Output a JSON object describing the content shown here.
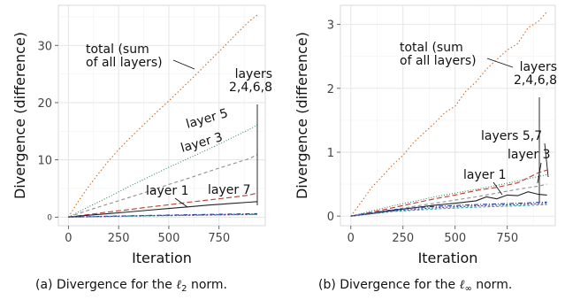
{
  "chart_data": [
    {
      "type": "line",
      "caption_prefix": "(a) Divergence for the ",
      "caption_symbol": "ℓ",
      "caption_sub": "2",
      "caption_suffix": " norm.",
      "xlabel": "Iteration",
      "ylabel": "Divergence (difference)",
      "xlim": [
        -50,
        980
      ],
      "ylim": [
        -1.5,
        37
      ],
      "xticks": [
        0,
        250,
        500,
        750
      ],
      "yticks": [
        0,
        10,
        20,
        30
      ],
      "ytick_labels": [
        "0",
        "10",
        "20",
        "30"
      ],
      "grid": true,
      "series": [
        {
          "name": "total (sum of all layers)",
          "color": "#d2691e",
          "dash": "1.5,2.5",
          "x": [
            0,
            50,
            100,
            150,
            200,
            250,
            300,
            350,
            400,
            450,
            500,
            550,
            600,
            650,
            700,
            750,
            800,
            850,
            900,
            940
          ],
          "y": [
            0,
            2.8,
            5.3,
            7.6,
            9.8,
            11.8,
            13.6,
            15.3,
            17.0,
            18.7,
            20.3,
            22.0,
            23.7,
            25.4,
            27.2,
            28.9,
            30.7,
            32.5,
            34.2,
            35.3
          ]
        },
        {
          "name": "layer 5",
          "color": "#2e8b57",
          "dash": "1,2",
          "x": [
            0,
            100,
            200,
            300,
            400,
            500,
            600,
            700,
            800,
            900,
            940
          ],
          "y": [
            0,
            1.8,
            3.5,
            5.3,
            7.0,
            8.7,
            10.3,
            11.9,
            13.6,
            15.3,
            16.1
          ]
        },
        {
          "name": "layer 3",
          "color": "#909090",
          "dash": "4,3",
          "x": [
            0,
            100,
            200,
            300,
            400,
            500,
            600,
            700,
            800,
            900,
            940
          ],
          "y": [
            0,
            1.2,
            2.3,
            3.4,
            4.5,
            5.7,
            6.8,
            8.0,
            9.1,
            10.2,
            10.9
          ]
        },
        {
          "name": "layer 7",
          "color": "#c0392b",
          "dash": "6,3",
          "x": [
            0,
            100,
            200,
            300,
            400,
            500,
            600,
            700,
            800,
            900,
            940
          ],
          "y": [
            0,
            0.45,
            0.9,
            1.3,
            1.75,
            2.15,
            2.6,
            3.0,
            3.4,
            3.85,
            4.2
          ]
        },
        {
          "name": "layer 1",
          "color": "#222222",
          "dash": "",
          "x": [
            0,
            100,
            200,
            300,
            400,
            500,
            600,
            700,
            800,
            900,
            940
          ],
          "y": [
            0,
            0.32,
            0.6,
            0.9,
            1.2,
            1.5,
            1.8,
            2.1,
            2.35,
            2.6,
            2.7
          ]
        },
        {
          "name": "layers 2,4,6,8 (a)",
          "color": "#1f3fa0",
          "dash": "5,2,1,2",
          "x": [
            0,
            200,
            400,
            600,
            800,
            940
          ],
          "y": [
            0,
            0.15,
            0.3,
            0.42,
            0.52,
            0.6
          ]
        },
        {
          "name": "layers 2,4,6,8 (b)",
          "color": "#20b2aa",
          "dash": "3,2",
          "x": [
            0,
            200,
            400,
            600,
            800,
            940
          ],
          "y": [
            0,
            0.1,
            0.2,
            0.3,
            0.38,
            0.45
          ]
        },
        {
          "name": "layers 2,4,6,8 (c)",
          "color": "#5b2c8f",
          "dash": "2,2",
          "x": [
            0,
            200,
            400,
            600,
            800,
            940
          ],
          "y": [
            0,
            0.12,
            0.24,
            0.34,
            0.44,
            0.5
          ]
        }
      ],
      "annotations": [
        {
          "lines": [
            "total (sum",
            "of all layers)"
          ]
        },
        {
          "lines": [
            "layers",
            "2,4,6,8"
          ]
        },
        {
          "lines": [
            "layer 5"
          ]
        },
        {
          "lines": [
            "layer 3"
          ]
        },
        {
          "lines": [
            "layer 1"
          ]
        },
        {
          "lines": [
            "layer 7"
          ]
        }
      ]
    },
    {
      "type": "line",
      "caption_prefix": "(b) Divergence for the ",
      "caption_symbol": "ℓ",
      "caption_sub": "∞",
      "caption_suffix": " norm.",
      "xlabel": "Iteration",
      "ylabel": "Divergence (difference)",
      "xlim": [
        -50,
        980
      ],
      "ylim": [
        -0.15,
        3.3
      ],
      "xticks": [
        0,
        250,
        500,
        750
      ],
      "yticks": [
        0,
        1,
        2,
        3
      ],
      "ytick_labels": [
        "0",
        "1",
        "2",
        "3"
      ],
      "grid": true,
      "series": [
        {
          "name": "total (sum of all layers)",
          "color": "#d2691e",
          "dash": "1.5,2.5",
          "x": [
            0,
            50,
            100,
            150,
            200,
            250,
            300,
            350,
            400,
            450,
            500,
            550,
            600,
            650,
            700,
            750,
            800,
            850,
            900,
            940
          ],
          "y": [
            0,
            0.22,
            0.45,
            0.62,
            0.8,
            0.95,
            1.15,
            1.3,
            1.45,
            1.62,
            1.72,
            1.95,
            2.1,
            2.3,
            2.45,
            2.6,
            2.7,
            2.95,
            3.05,
            3.2
          ]
        },
        {
          "name": "layers 5,7 (a)",
          "color": "#2e8b57",
          "dash": "1,2",
          "x": [
            0,
            100,
            200,
            300,
            400,
            500,
            600,
            700,
            800,
            900,
            940
          ],
          "y": [
            0,
            0.08,
            0.16,
            0.23,
            0.3,
            0.36,
            0.42,
            0.48,
            0.55,
            0.62,
            0.65
          ]
        },
        {
          "name": "layers 5,7 (b)",
          "color": "#c0392b",
          "dash": "6,3",
          "x": [
            0,
            100,
            200,
            300,
            400,
            500,
            600,
            700,
            800,
            900,
            940
          ],
          "y": [
            0,
            0.06,
            0.13,
            0.2,
            0.27,
            0.33,
            0.4,
            0.45,
            0.52,
            0.68,
            0.72
          ]
        },
        {
          "name": "layer 3",
          "color": "#909090",
          "dash": "4,3",
          "x": [
            0,
            100,
            200,
            300,
            400,
            500,
            600,
            700,
            800,
            900,
            940
          ],
          "y": [
            0,
            0.05,
            0.1,
            0.15,
            0.2,
            0.25,
            0.3,
            0.36,
            0.42,
            0.47,
            0.5
          ]
        },
        {
          "name": "layer 1",
          "color": "#222222",
          "dash": "",
          "x": [
            0,
            100,
            200,
            300,
            400,
            500,
            600,
            650,
            700,
            750,
            800,
            850,
            900,
            940
          ],
          "y": [
            0,
            0.04,
            0.09,
            0.13,
            0.17,
            0.2,
            0.24,
            0.3,
            0.27,
            0.33,
            0.32,
            0.38,
            0.34,
            0.33
          ]
        },
        {
          "name": "layers 2,4,6,8 (a)",
          "color": "#1f3fa0",
          "dash": "5,2,1,2",
          "x": [
            0,
            200,
            400,
            600,
            800,
            940
          ],
          "y": [
            0,
            0.1,
            0.15,
            0.18,
            0.2,
            0.22
          ]
        },
        {
          "name": "layers 2,4,6,8 (b)",
          "color": "#20b2aa",
          "dash": "3,2",
          "x": [
            0,
            200,
            400,
            600,
            800,
            940
          ],
          "y": [
            0,
            0.07,
            0.11,
            0.14,
            0.16,
            0.18
          ]
        },
        {
          "name": "layers 2,4,6,8 (c)",
          "color": "#5b2c8f",
          "dash": "2,2",
          "x": [
            0,
            200,
            400,
            600,
            800,
            940
          ],
          "y": [
            0,
            0.08,
            0.13,
            0.16,
            0.18,
            0.2
          ]
        }
      ],
      "annotations": [
        {
          "lines": [
            "total (sum",
            "of all layers)"
          ]
        },
        {
          "lines": [
            "layers",
            "2,4,6,8"
          ]
        },
        {
          "lines": [
            "layers 5,7"
          ]
        },
        {
          "lines": [
            "layer 3"
          ]
        },
        {
          "lines": [
            "layer 1"
          ]
        }
      ]
    }
  ]
}
